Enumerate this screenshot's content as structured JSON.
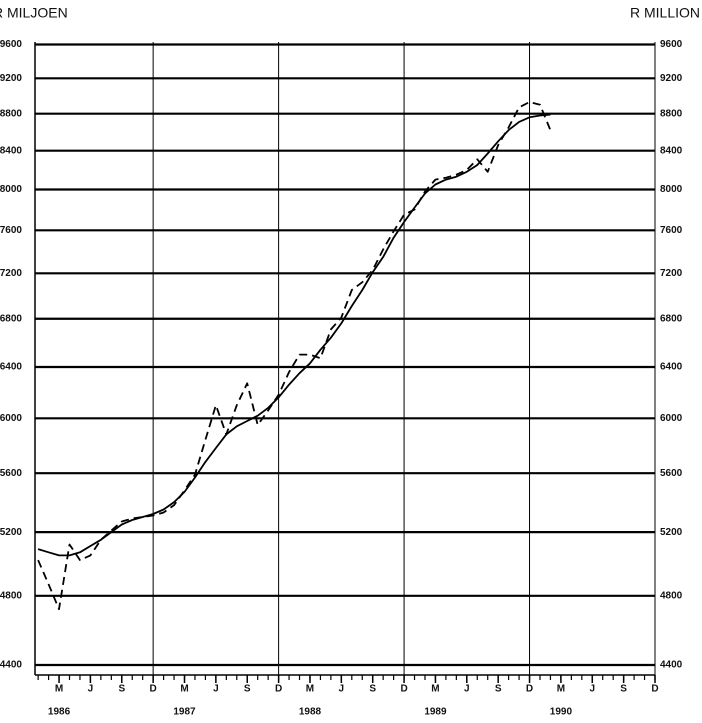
{
  "chart_data": {
    "type": "line",
    "title_left": "R MILJOEN",
    "title_right": "R MILLION",
    "log_y": true,
    "ylim": [
      4345,
      9630
    ],
    "yticks": [
      4400,
      4800,
      5200,
      5600,
      6000,
      6400,
      6800,
      7200,
      7600,
      8000,
      8400,
      8800,
      9200,
      9600
    ],
    "xlim": [
      0.7,
      60
    ],
    "xticks": [
      {
        "value": 3,
        "label": "M"
      },
      {
        "value": 6,
        "label": "J"
      },
      {
        "value": 9,
        "label": "S"
      },
      {
        "value": 12,
        "label": "D"
      },
      {
        "value": 15,
        "label": "M"
      },
      {
        "value": 18,
        "label": "J"
      },
      {
        "value": 21,
        "label": "S"
      },
      {
        "value": 24,
        "label": "D"
      },
      {
        "value": 27,
        "label": "M"
      },
      {
        "value": 30,
        "label": "J"
      },
      {
        "value": 33,
        "label": "S"
      },
      {
        "value": 36,
        "label": "D"
      },
      {
        "value": 39,
        "label": "M"
      },
      {
        "value": 42,
        "label": "J"
      },
      {
        "value": 45,
        "label": "S"
      },
      {
        "value": 48,
        "label": "D"
      },
      {
        "value": 51,
        "label": "M"
      },
      {
        "value": 54,
        "label": "J"
      },
      {
        "value": 57,
        "label": "S"
      },
      {
        "value": 60,
        "label": "D"
      }
    ],
    "year_ticks": [
      {
        "value": 3,
        "label": "1986"
      },
      {
        "value": 15,
        "label": "1987"
      },
      {
        "value": 27,
        "label": "1988"
      },
      {
        "value": 39,
        "label": "1989"
      },
      {
        "value": 51,
        "label": "1990"
      }
    ],
    "xgrid": [
      12,
      24,
      36,
      48,
      60
    ],
    "grid": true,
    "x": [
      1,
      2,
      3,
      4,
      5,
      6,
      7,
      8,
      9,
      10,
      11,
      12,
      13,
      14,
      15,
      16,
      17,
      18,
      19,
      20,
      21,
      22,
      23,
      24,
      25,
      26,
      27,
      28,
      29,
      30,
      31,
      32,
      33,
      34,
      35,
      36,
      37,
      38,
      39,
      40,
      41,
      42,
      43,
      44,
      45,
      46,
      47,
      48,
      49,
      50
    ],
    "series": [
      {
        "color": "#000000",
        "style": "solid",
        "values": [
          5090,
          5070,
          5050,
          5050,
          5070,
          5110,
          5150,
          5200,
          5250,
          5280,
          5300,
          5320,
          5350,
          5400,
          5470,
          5570,
          5680,
          5780,
          5880,
          5940,
          5980,
          6020,
          6080,
          6160,
          6260,
          6350,
          6430,
          6540,
          6640,
          6760,
          6910,
          7050,
          7210,
          7350,
          7530,
          7680,
          7820,
          7960,
          8050,
          8100,
          8130,
          8180,
          8250,
          8370,
          8500,
          8620,
          8710,
          8760,
          8780,
          8790
        ]
      },
      {
        "color": "#000000",
        "style": "dashed",
        "values": [
          5020,
          4870,
          4720,
          5120,
          5020,
          5050,
          5150,
          5210,
          5270,
          5290,
          5300,
          5310,
          5330,
          5380,
          5480,
          5590,
          5840,
          6100,
          5880,
          6100,
          6270,
          5950,
          6060,
          6180,
          6360,
          6500,
          6500,
          6470,
          6710,
          6810,
          7050,
          7120,
          7230,
          7420,
          7590,
          7750,
          7800,
          7980,
          8100,
          8120,
          8150,
          8200,
          8310,
          8180,
          8460,
          8650,
          8870,
          8930,
          8900,
          8620
        ]
      }
    ]
  }
}
